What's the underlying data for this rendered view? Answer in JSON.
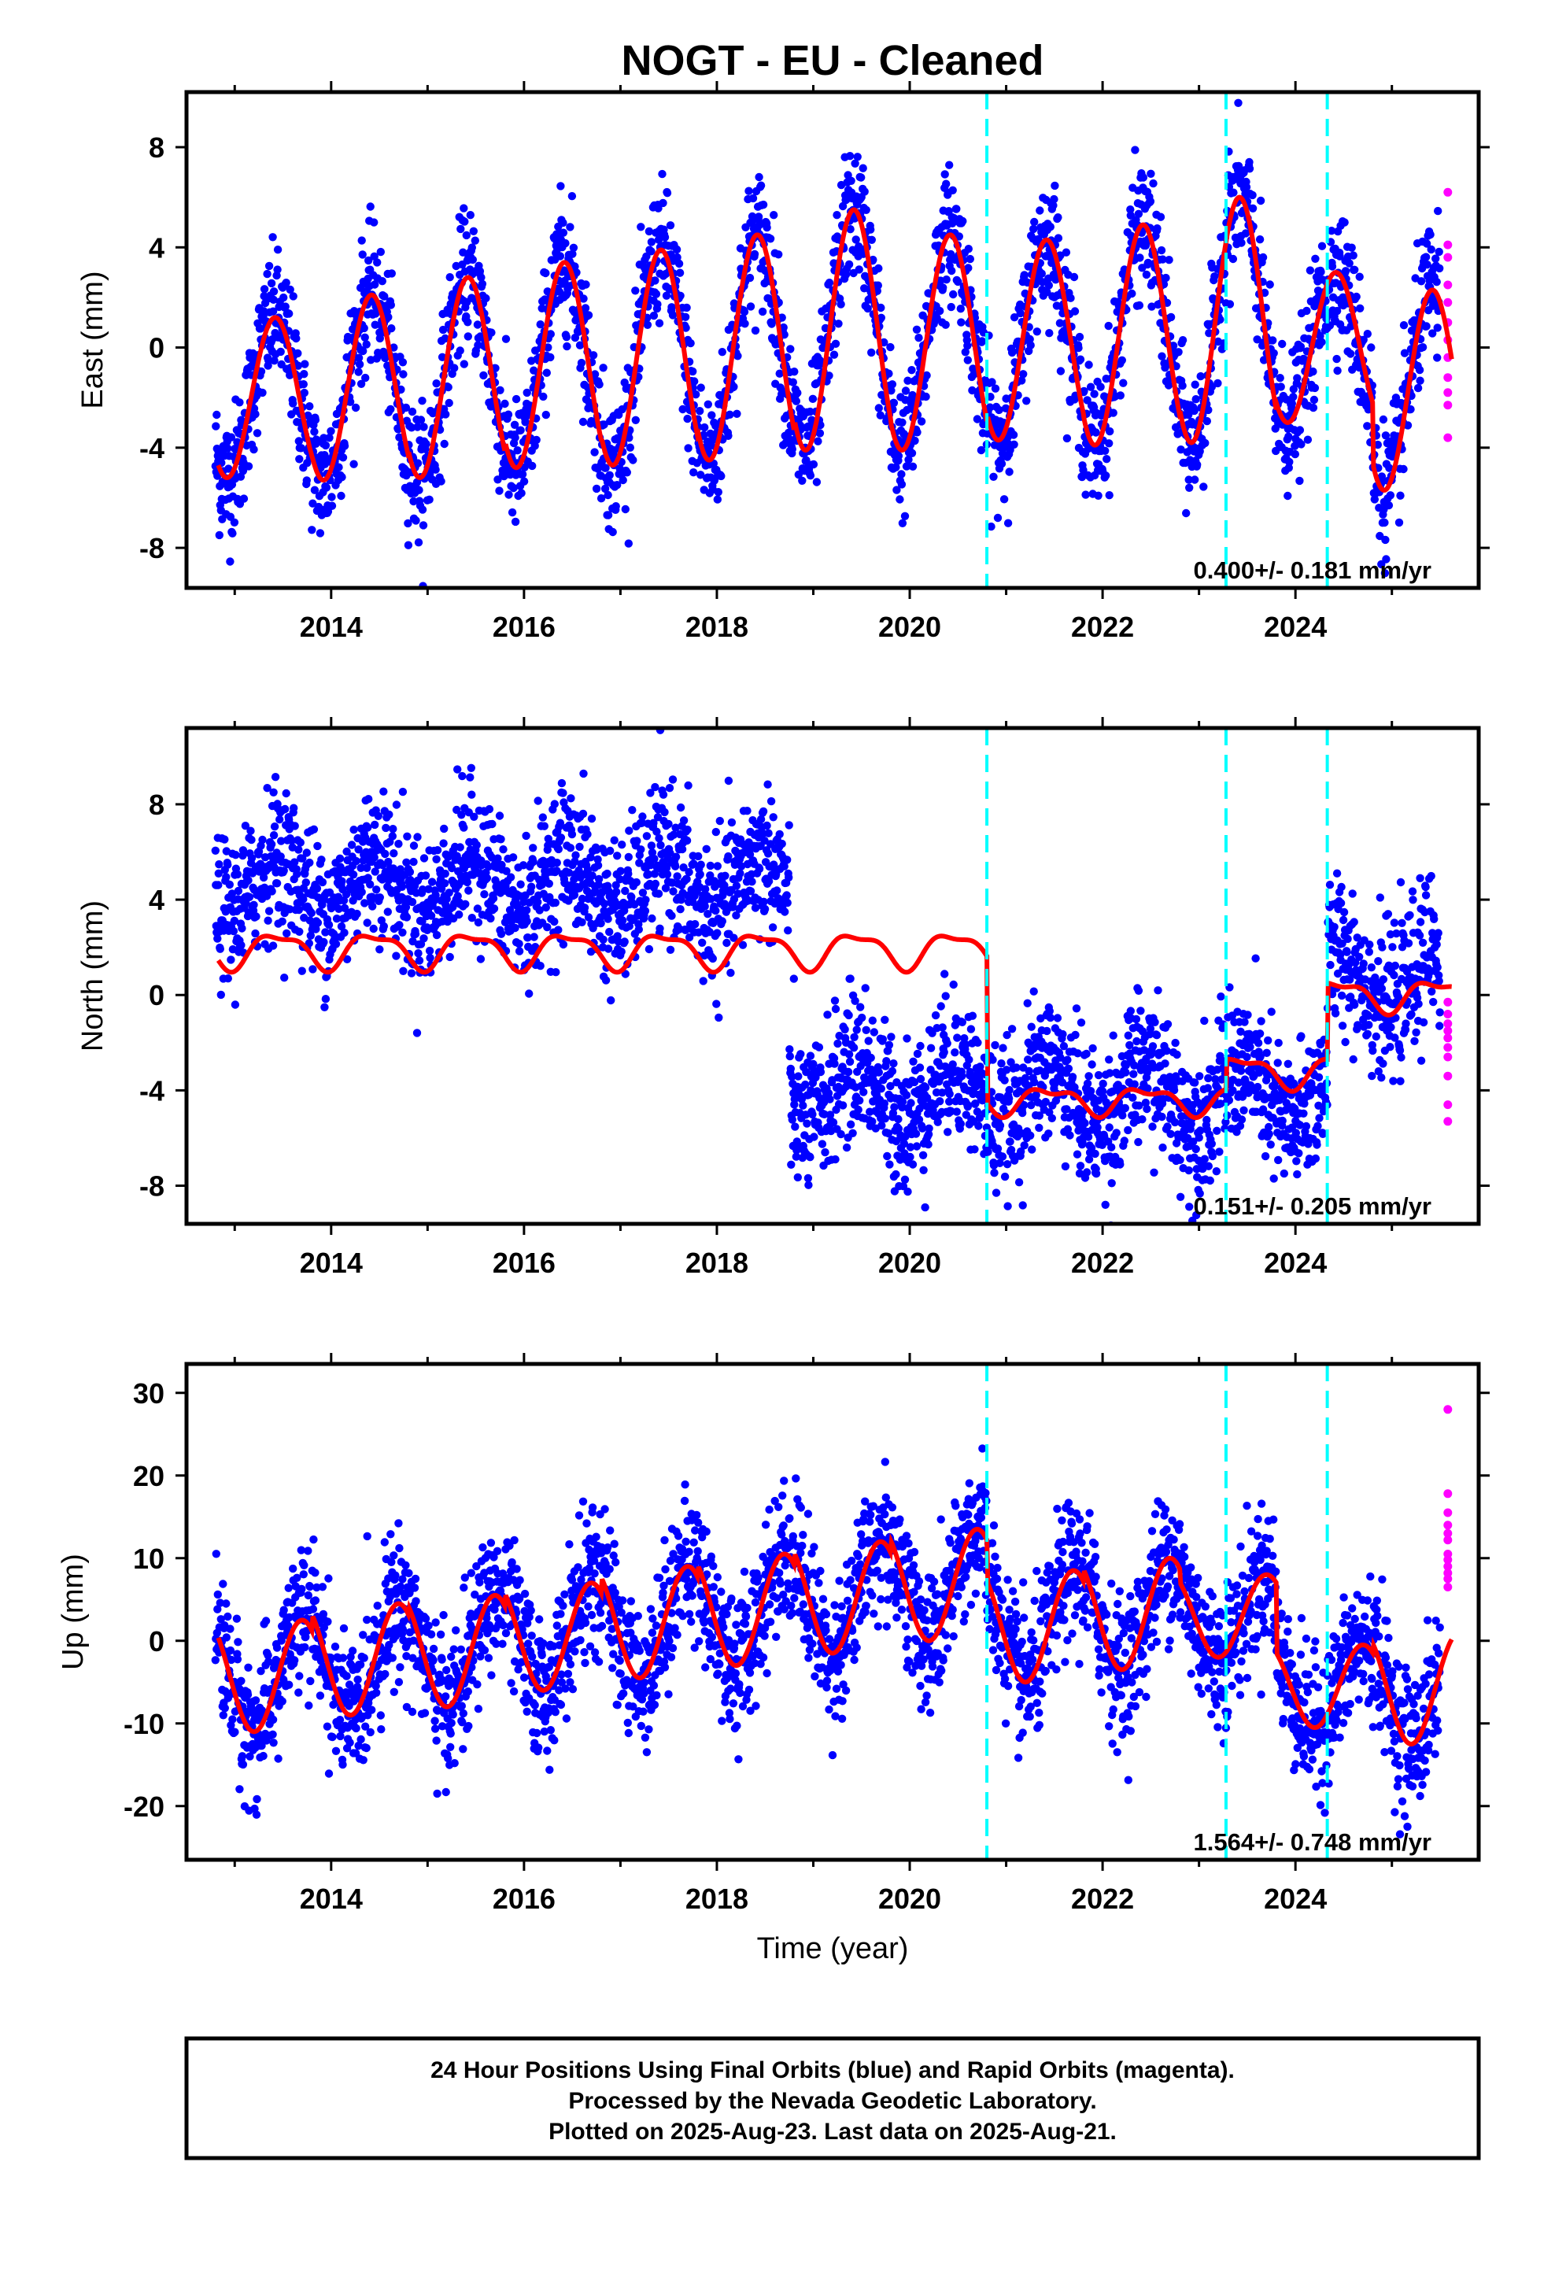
{
  "title": "NOGT  - EU - Cleaned",
  "x_axis_label": "Time (year)",
  "footer": {
    "line1": "24 Hour Positions Using Final Orbits (blue) and Rapid Orbits (magenta).",
    "line2": "Processed by the Nevada Geodetic Laboratory.",
    "line3": "Plotted on 2025-Aug-23. Last data on 2025-Aug-21."
  },
  "colors": {
    "final_orbits": "#0000ff",
    "rapid_orbits": "#ff00ff",
    "model": "#ff0000",
    "steps": "#00ffff"
  },
  "chart_data": [
    {
      "type": "scatter",
      "component": "East",
      "ylabel": "East (mm)",
      "rate_label": "0.400+/- 0.181 mm/yr",
      "xlim": [
        2012.5,
        2025.9
      ],
      "ylim": [
        -9.6,
        10.2
      ],
      "xticks": [
        2014,
        2016,
        2018,
        2020,
        2022,
        2024
      ],
      "yticks": [
        -8,
        -4,
        0,
        4,
        8
      ],
      "step_epochs": [
        2020.8,
        2023.28,
        2024.33
      ],
      "model": {
        "annual_amplitude": [
          3.2,
          3.7,
          4.0,
          4.1,
          4.3,
          4.5,
          4.8,
          4.3,
          4.0,
          4.4,
          4.9,
          3.0,
          4.0
        ],
        "offset": [
          -2.0,
          -1.6,
          -1.2,
          -0.7,
          -0.4,
          0.0,
          0.7,
          0.2,
          0.3,
          0.5,
          1.1,
          0.0,
          -1.7
        ]
      },
      "series": [
        {
          "name": "Final Orbits",
          "color": "#0000ff",
          "x_range": [
            2012.8,
            2025.5
          ],
          "noise_sd": 1.3
        },
        {
          "name": "Rapid Orbits",
          "color": "#ff00ff",
          "x_range": [
            2025.5,
            2025.62
          ],
          "y": [
            6.2,
            4.1,
            3.6,
            2.5,
            1.8,
            1.0,
            0.3,
            -0.4,
            -1.2,
            -1.8,
            -2.3,
            -3.6
          ]
        }
      ]
    },
    {
      "type": "scatter",
      "component": "North",
      "ylabel": "North (mm)",
      "rate_label": "0.151+/- 0.205 mm/yr",
      "xlim": [
        2012.5,
        2025.9
      ],
      "ylim": [
        -9.6,
        11.2
      ],
      "xticks": [
        2014,
        2016,
        2018,
        2020,
        2022,
        2024
      ],
      "yticks": [
        -8,
        -4,
        0,
        4,
        8
      ],
      "step_epochs": [
        2020.8,
        2023.28,
        2024.33
      ],
      "model": {
        "levels": [
          {
            "from": 2012.8,
            "to": 2020.8,
            "value": 1.9,
            "amp": 0.7
          },
          {
            "from": 2020.8,
            "to": 2023.28,
            "value": -4.4,
            "amp": 0.5
          },
          {
            "from": 2023.28,
            "to": 2024.33,
            "value": -3.2,
            "amp": 0.6
          },
          {
            "from": 2024.33,
            "to": 2025.62,
            "value": 0.0,
            "amp": 0.6
          }
        ]
      },
      "series": [
        {
          "name": "Final Orbits",
          "color": "#0000ff",
          "x_range": [
            2012.8,
            2025.5
          ],
          "segment_means": [
            {
              "from": 2012.8,
              "to": 2018.75,
              "mean": 4.6
            },
            {
              "from": 2018.75,
              "to": 2020.8,
              "mean": -4.0
            },
            {
              "from": 2020.8,
              "to": 2024.33,
              "mean": -4.2
            },
            {
              "from": 2024.33,
              "to": 2025.5,
              "mean": 0.7
            }
          ],
          "noise_sd": 1.5
        },
        {
          "name": "Rapid Orbits",
          "color": "#ff00ff",
          "x_range": [
            2025.5,
            2025.62
          ],
          "y": [
            -0.3,
            -0.8,
            -1.2,
            -1.5,
            -1.8,
            -2.2,
            -2.6,
            -3.4,
            -4.6,
            -5.3
          ]
        }
      ]
    },
    {
      "type": "scatter",
      "component": "Up",
      "ylabel": "Up (mm)",
      "rate_label": "1.564+/- 0.748 mm/yr",
      "xlim": [
        2012.5,
        2025.9
      ],
      "ylim": [
        -26.5,
        33.5
      ],
      "xticks": [
        2014,
        2016,
        2018,
        2020,
        2022,
        2024
      ],
      "yticks": [
        -20,
        -10,
        0,
        10,
        20,
        30
      ],
      "step_epochs": [
        2020.8,
        2023.28,
        2024.33
      ],
      "model": {
        "peaks": [
          2.5,
          4.5,
          5.5,
          7.0,
          9.0,
          10.5,
          12.0,
          13.5,
          8.5,
          10.0,
          8.0,
          -0.5,
          1.0
        ],
        "troughs": [
          -11.0,
          -9.0,
          -8.0,
          -6.0,
          -4.5,
          -3.0,
          -1.5,
          0.0,
          -5.0,
          -3.5,
          -2.0,
          -10.5,
          -12.5
        ]
      },
      "series": [
        {
          "name": "Final Orbits",
          "color": "#0000ff",
          "x_range": [
            2012.8,
            2025.5
          ],
          "noise_sd": 4.2
        },
        {
          "name": "Rapid Orbits",
          "color": "#ff00ff",
          "x_range": [
            2025.5,
            2025.62
          ],
          "y": [
            28.0,
            17.8,
            15.5,
            14.0,
            13.0,
            12.2,
            10.5,
            9.8,
            9.0,
            8.2,
            7.5,
            6.5
          ]
        }
      ]
    }
  ]
}
